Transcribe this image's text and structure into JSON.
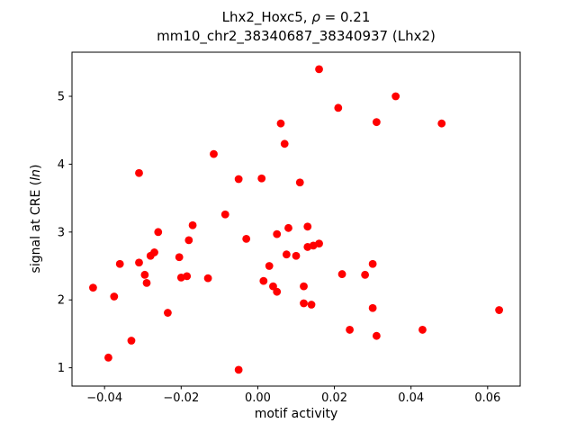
{
  "chart_data": {
    "type": "scatter",
    "title_line1_parts": [
      "Lhx2_Hoxc5, ",
      "ρ",
      " = 0.21"
    ],
    "title_line2": "mm10_chr2_38340687_38340937 (Lhx2)",
    "xlabel": "motif activity",
    "ylabel_parts": [
      "signal at CRE (",
      "ln",
      ")"
    ],
    "marker_color": "#ff0000",
    "axis_color": "#000000",
    "background_color": "#ffffff",
    "xlim": [
      -0.0485,
      0.0685
    ],
    "ylim": [
      0.73,
      5.65
    ],
    "x_ticks": [
      -0.04,
      -0.02,
      0.0,
      0.02,
      0.04,
      0.06
    ],
    "x_tick_labels": [
      "−0.04",
      "−0.02",
      "0.00",
      "0.02",
      "0.04",
      "0.06"
    ],
    "y_ticks": [
      1,
      2,
      3,
      4,
      5
    ],
    "y_tick_labels": [
      "1",
      "2",
      "3",
      "4",
      "5"
    ],
    "grid": false,
    "legend": "none",
    "points": [
      [
        -0.043,
        2.18
      ],
      [
        -0.039,
        1.15
      ],
      [
        -0.0375,
        2.05
      ],
      [
        -0.036,
        2.53
      ],
      [
        -0.033,
        1.4
      ],
      [
        -0.031,
        3.87
      ],
      [
        -0.031,
        2.55
      ],
      [
        -0.0295,
        2.37
      ],
      [
        -0.029,
        2.25
      ],
      [
        -0.028,
        2.65
      ],
      [
        -0.027,
        2.7
      ],
      [
        -0.026,
        3.0
      ],
      [
        -0.0235,
        1.81
      ],
      [
        -0.0205,
        2.63
      ],
      [
        -0.02,
        2.33
      ],
      [
        -0.0185,
        2.35
      ],
      [
        -0.018,
        2.88
      ],
      [
        -0.017,
        3.1
      ],
      [
        -0.013,
        2.32
      ],
      [
        -0.0115,
        4.15
      ],
      [
        -0.0085,
        3.26
      ],
      [
        -0.005,
        0.97
      ],
      [
        -0.005,
        3.78
      ],
      [
        -0.003,
        2.9
      ],
      [
        0.001,
        3.79
      ],
      [
        0.0015,
        2.28
      ],
      [
        0.003,
        2.5
      ],
      [
        0.004,
        2.2
      ],
      [
        0.005,
        2.12
      ],
      [
        0.005,
        2.97
      ],
      [
        0.006,
        4.6
      ],
      [
        0.007,
        4.3
      ],
      [
        0.0075,
        2.67
      ],
      [
        0.008,
        3.06
      ],
      [
        0.01,
        2.65
      ],
      [
        0.011,
        3.73
      ],
      [
        0.012,
        2.2
      ],
      [
        0.012,
        1.95
      ],
      [
        0.013,
        3.08
      ],
      [
        0.013,
        2.78
      ],
      [
        0.014,
        1.93
      ],
      [
        0.0145,
        2.8
      ],
      [
        0.016,
        5.4
      ],
      [
        0.016,
        2.83
      ],
      [
        0.021,
        4.83
      ],
      [
        0.022,
        2.38
      ],
      [
        0.024,
        1.56
      ],
      [
        0.028,
        2.37
      ],
      [
        0.03,
        2.53
      ],
      [
        0.03,
        1.88
      ],
      [
        0.031,
        4.62
      ],
      [
        0.031,
        1.47
      ],
      [
        0.036,
        5.0
      ],
      [
        0.043,
        1.56
      ],
      [
        0.048,
        4.6
      ],
      [
        0.063,
        1.85
      ]
    ]
  }
}
